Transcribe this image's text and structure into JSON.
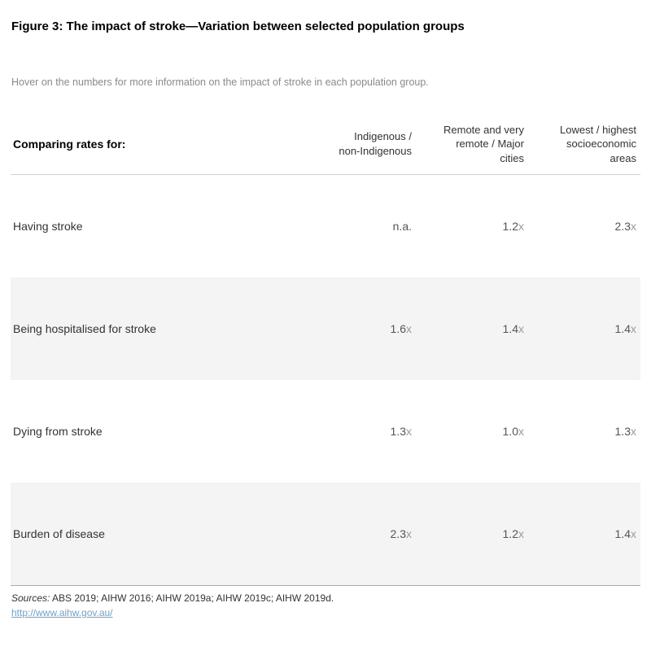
{
  "page": {
    "title": "Figure 3: The impact of stroke—Variation between selected population groups",
    "subtitle": "Hover on the numbers for more information on the impact of stroke in each population group."
  },
  "table": {
    "row_header": "Comparing rates for:",
    "columns": [
      "Indigenous /\nnon-Indigenous",
      "Remote and very\nremote / Major\ncities",
      "Lowest / highest\nsocioeconomic\nareas"
    ],
    "rows": [
      {
        "label": "Having stroke",
        "values": [
          {
            "num": "n.a.",
            "suffix": ""
          },
          {
            "num": "1.2",
            "suffix": "x"
          },
          {
            "num": "2.3",
            "suffix": "x"
          }
        ]
      },
      {
        "label": "Being hospitalised for stroke",
        "values": [
          {
            "num": "1.6",
            "suffix": "x"
          },
          {
            "num": "1.4",
            "suffix": "x"
          },
          {
            "num": "1.4",
            "suffix": "x"
          }
        ]
      },
      {
        "label": "Dying from stroke",
        "values": [
          {
            "num": "1.3",
            "suffix": "x"
          },
          {
            "num": "1.0",
            "suffix": "x"
          },
          {
            "num": "1.3",
            "suffix": "x"
          }
        ]
      },
      {
        "label": "Burden of disease",
        "values": [
          {
            "num": "2.3",
            "suffix": "x"
          },
          {
            "num": "1.2",
            "suffix": "x"
          },
          {
            "num": "1.4",
            "suffix": "x"
          }
        ]
      }
    ]
  },
  "footer": {
    "sources_label": "Sources:",
    "sources_text": " ABS 2019; AIHW 2016; AIHW 2019a; AIHW 2019c; AIHW 2019d.",
    "link_text": "http://www.aihw.gov.au/"
  },
  "colors": {
    "title": "#000000",
    "subtitle": "#8a8a8a",
    "header_text": "#333333",
    "label_text": "#333333",
    "value_text": "#555555",
    "suffix_text": "#9a9a9a",
    "row_alt_bg": "#f4f4f4",
    "divider": "#cfcfcf",
    "table_bottom_border": "#aaaaaa",
    "link": "#6ba3cc",
    "page_bg": "#ffffff"
  },
  "chart_data": {
    "type": "table",
    "title": "Figure 3: The impact of stroke—Variation between selected population groups",
    "row_header": "Comparing rates for:",
    "columns": [
      "Indigenous / non-Indigenous",
      "Remote and very remote / Major cities",
      "Lowest / highest socioeconomic areas"
    ],
    "rows": [
      {
        "label": "Having stroke",
        "values": [
          "n.a.",
          "1.2x",
          "2.3x"
        ]
      },
      {
        "label": "Being hospitalised for stroke",
        "values": [
          "1.6x",
          "1.4x",
          "1.4x"
        ]
      },
      {
        "label": "Dying from stroke",
        "values": [
          "1.3x",
          "1.0x",
          "1.3x"
        ]
      },
      {
        "label": "Burden of disease",
        "values": [
          "2.3x",
          "1.2x",
          "1.4x"
        ]
      }
    ],
    "notes": "Ratios of rates between population groups; alternating rows shaded; values right-aligned",
    "sources": "ABS 2019; AIHW 2016; AIHW 2019a; AIHW 2019c; AIHW 2019d.",
    "link": "http://www.aihw.gov.au/"
  }
}
